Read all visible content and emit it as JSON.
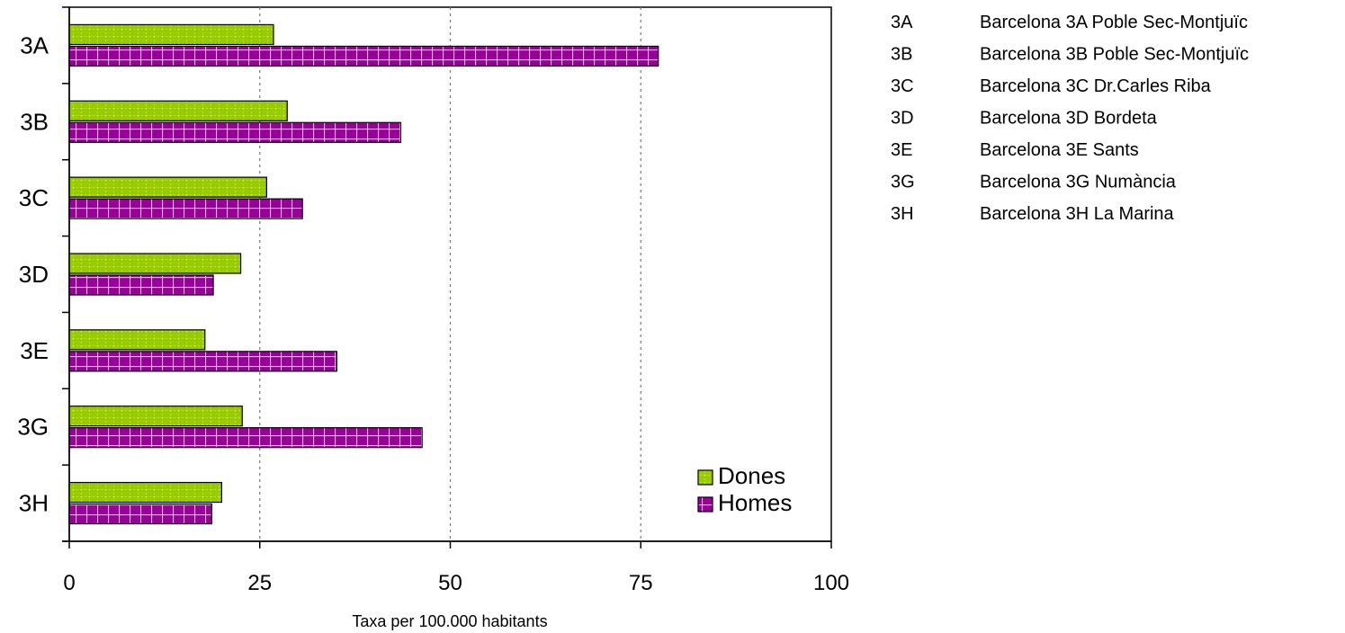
{
  "chart_data": {
    "type": "bar",
    "orientation": "horizontal",
    "categories": [
      "3A",
      "3B",
      "3C",
      "3D",
      "3E",
      "3G",
      "3H"
    ],
    "series": [
      {
        "name": "Dones",
        "values": [
          26.8,
          28.6,
          25.9,
          22.5,
          17.8,
          22.7,
          20.0
        ],
        "color": "#99CC00"
      },
      {
        "name": "Homes",
        "values": [
          77.3,
          43.5,
          30.6,
          18.9,
          35.1,
          46.3,
          18.7
        ],
        "color": "#990099"
      }
    ],
    "xlabel": "Taxa per 100.000 habitants",
    "xlim": [
      0,
      100
    ],
    "xticks": [
      0,
      25,
      50,
      75,
      100
    ],
    "grid": "vertical-dashed",
    "legend": "bottom-right inside plot",
    "key_table": [
      {
        "code": "3A",
        "name": "Barcelona 3A Poble Sec-Montjuïc"
      },
      {
        "code": "3B",
        "name": "Barcelona 3B Poble Sec-Montjuïc"
      },
      {
        "code": "3C",
        "name": "Barcelona 3C Dr.Carles Riba"
      },
      {
        "code": "3D",
        "name": "Barcelona 3D Bordeta"
      },
      {
        "code": "3E",
        "name": "Barcelona 3E Sants"
      },
      {
        "code": "3G",
        "name": "Barcelona 3G Numància"
      },
      {
        "code": "3H",
        "name": "Barcelona 3H La Marina"
      }
    ]
  }
}
